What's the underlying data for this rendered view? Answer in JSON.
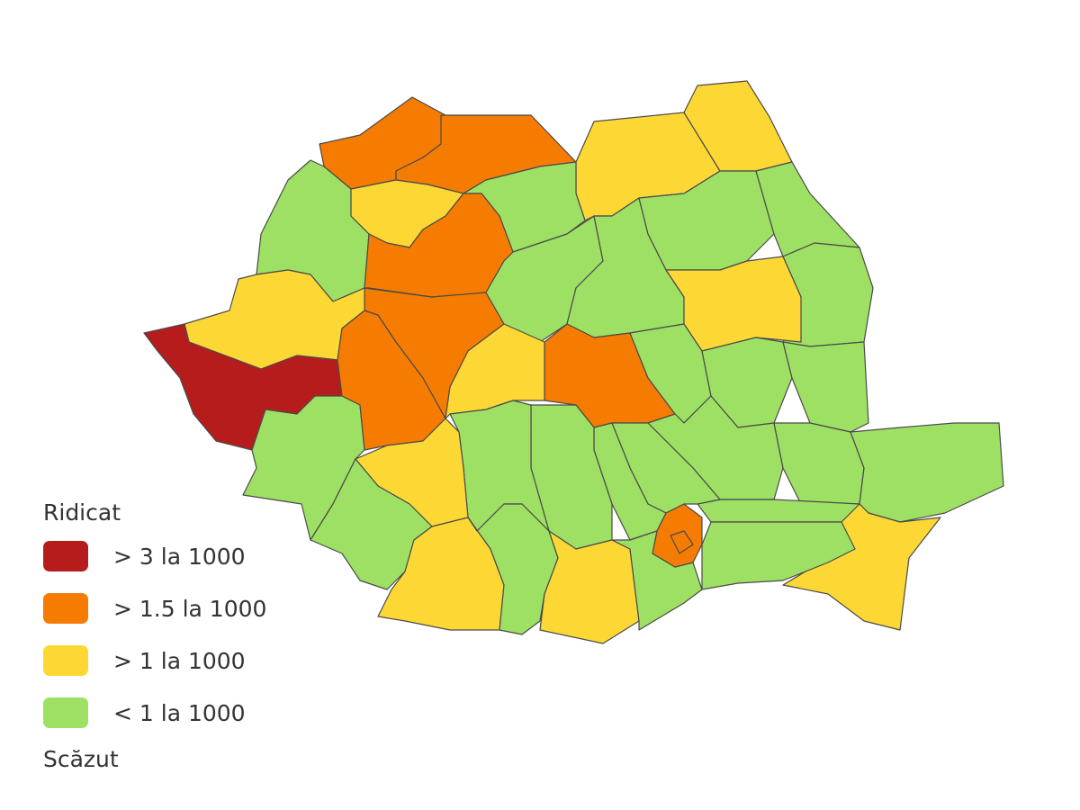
{
  "legend": {
    "top_label": "Ridicat",
    "bottom_label": "Scăzut",
    "items": [
      {
        "label": "> 3 la 1000",
        "color": "#b71c1c"
      },
      {
        "label": "> 1.5 la 1000",
        "color": "#f57c00"
      },
      {
        "label": "> 1 la 1000",
        "color": "#fdd835"
      },
      {
        "label": "< 1 la 1000",
        "color": "#9ee064"
      }
    ]
  },
  "map": {
    "border_color": "#4a4a4a",
    "region_levels": [
      1,
      1,
      2,
      2,
      3,
      2,
      3,
      1,
      2,
      0,
      3,
      1,
      1,
      3,
      3,
      3,
      3,
      3,
      2,
      1,
      2,
      3,
      3,
      3,
      3,
      3,
      3,
      2,
      3,
      3,
      3,
      3,
      3,
      3,
      2,
      3,
      2,
      3,
      2,
      3,
      1,
      1
    ]
  }
}
